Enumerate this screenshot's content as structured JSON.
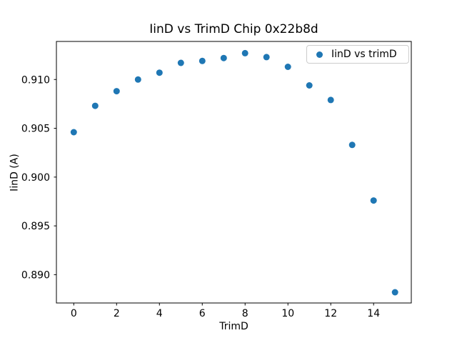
{
  "chart_data": {
    "type": "scatter",
    "title": "IinD vs TrimD Chip 0x22b8d",
    "xlabel": "TrimD",
    "ylabel": "IinD (A)",
    "legend": {
      "label": "IinD vs trimD",
      "position": "upper right"
    },
    "x": [
      0,
      1,
      2,
      3,
      4,
      5,
      6,
      7,
      8,
      9,
      10,
      11,
      12,
      13,
      14,
      15
    ],
    "y": [
      0.9046,
      0.9073,
      0.9088,
      0.91,
      0.9107,
      0.9117,
      0.9119,
      0.9122,
      0.9127,
      0.9123,
      0.9113,
      0.9094,
      0.9079,
      0.9033,
      0.8976,
      0.8882
    ],
    "xlim": [
      -0.81,
      15.76
    ],
    "ylim": [
      0.8871,
      0.9139
    ],
    "xticks": {
      "values": [
        0,
        2,
        4,
        6,
        8,
        10,
        12,
        14
      ],
      "labels": [
        "0",
        "2",
        "4",
        "6",
        "8",
        "10",
        "12",
        "14"
      ]
    },
    "yticks": {
      "values": [
        0.89,
        0.895,
        0.9,
        0.905,
        0.91
      ],
      "labels": [
        "0.890",
        "0.895",
        "0.900",
        "0.905",
        "0.910"
      ]
    },
    "marker_color": "#1f77b4",
    "spine_color": "#000000",
    "grid": false
  }
}
